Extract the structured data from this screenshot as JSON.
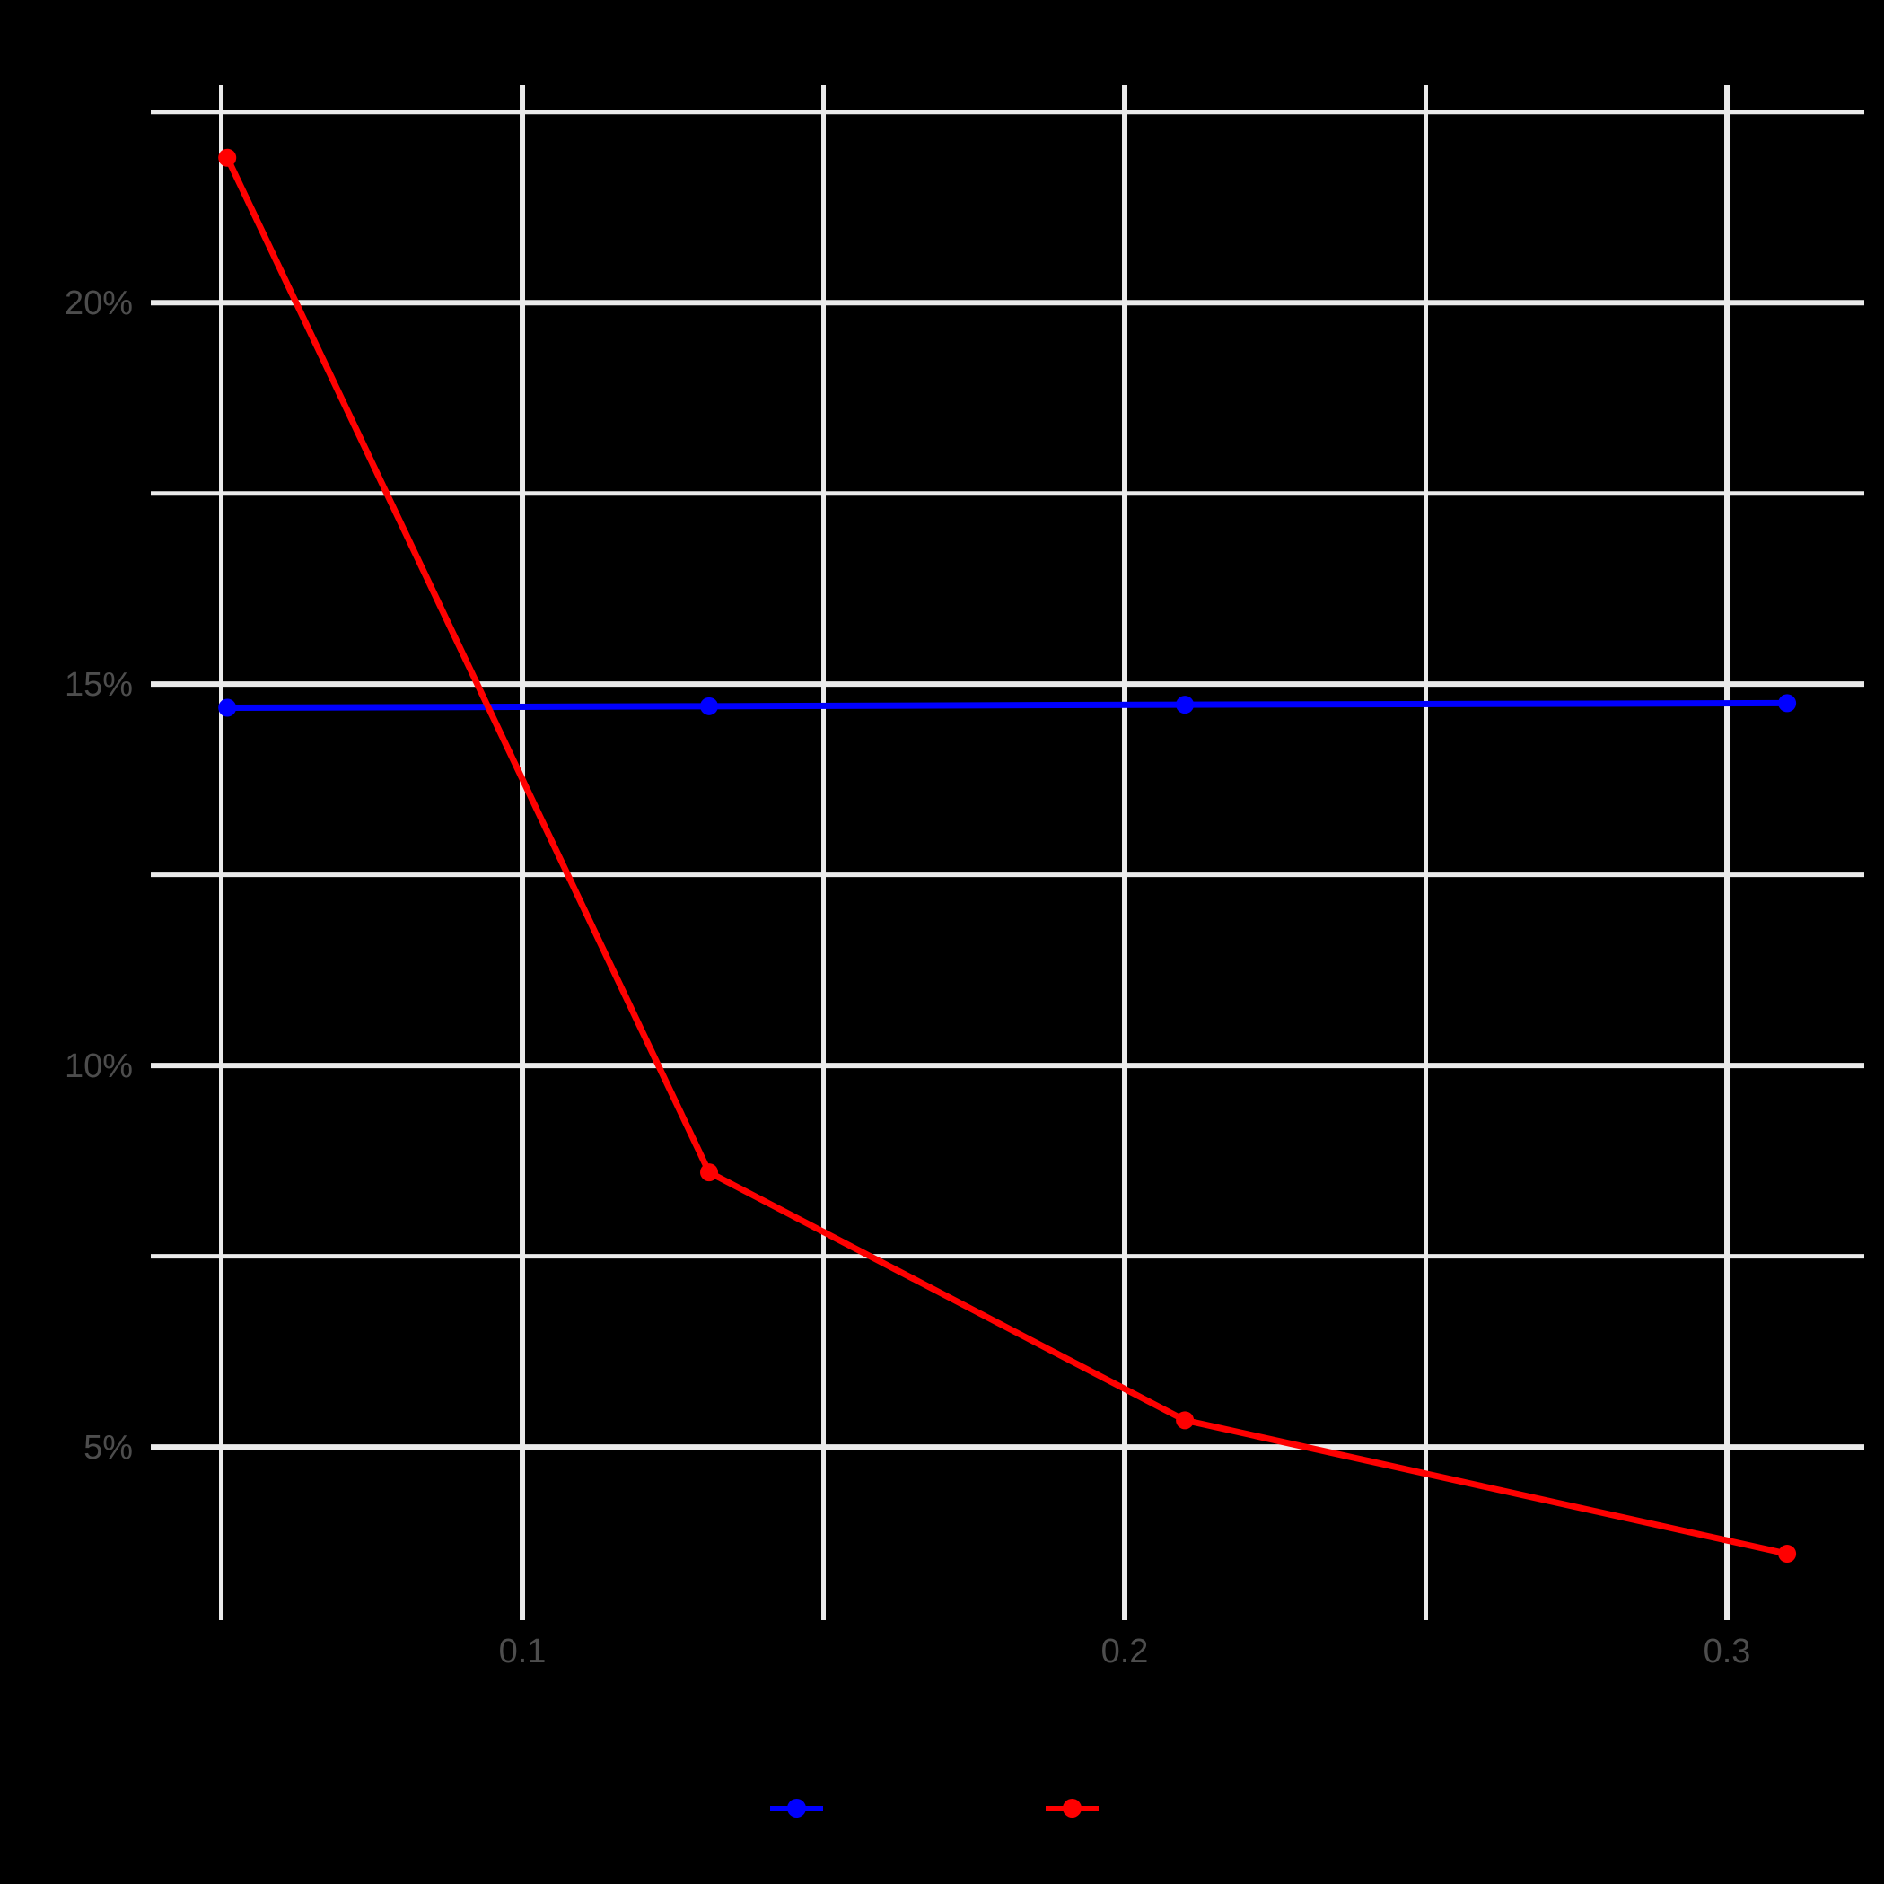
{
  "chart_data": {
    "type": "line",
    "x": [
      0.051,
      0.131,
      0.21,
      0.31
    ],
    "series": [
      {
        "name": "",
        "color": "#0000ff",
        "values": [
          14.69,
          14.71,
          14.73,
          14.75
        ]
      },
      {
        "name": "",
        "color": "#ff0000",
        "values": [
          21.9,
          8.6,
          5.35,
          3.6
        ]
      }
    ],
    "x_axis": {
      "tick_labels": [
        "0.1",
        "0.2",
        "0.3"
      ],
      "major_ticks": [
        0.1,
        0.2,
        0.3
      ],
      "minor_ticks": [
        0.05,
        0.15,
        0.25
      ],
      "range": [
        0.0383,
        0.3228
      ]
    },
    "y_axis": {
      "tick_labels": [
        "5%",
        "10%",
        "15%",
        "20%"
      ],
      "major_ticks": [
        5,
        10,
        15,
        20
      ],
      "minor_ticks": [
        7.5,
        12.5,
        17.5,
        22.5
      ],
      "range": [
        2.73,
        22.85
      ],
      "unit": "percent"
    },
    "grid": "major-and-minor",
    "legend_position": "bottom-center"
  },
  "legend": {
    "entries": [
      {
        "label": "",
        "color": "#0000ff"
      },
      {
        "label": "",
        "color": "#ff0000"
      }
    ]
  },
  "colors": {
    "background": "#000000",
    "grid": "#ebebeb",
    "axis_text": "#4d4d4d",
    "series_blue": "#0000ff",
    "series_red": "#ff0000"
  }
}
